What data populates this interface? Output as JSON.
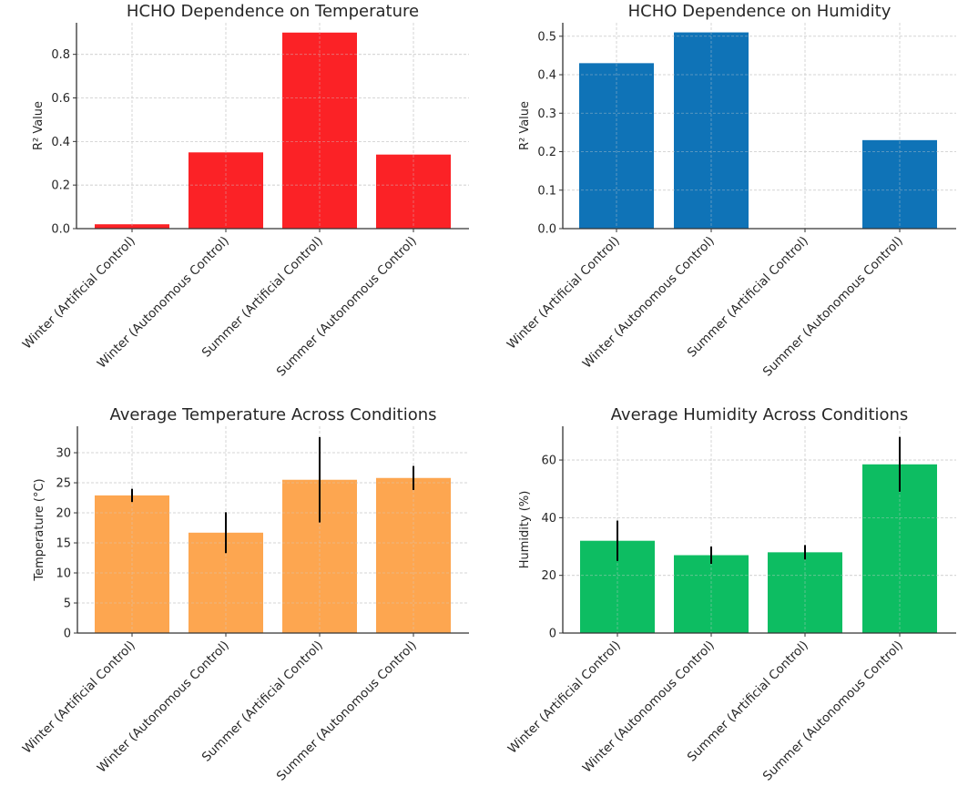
{
  "chart_data": [
    {
      "type": "bar",
      "title": "HCHO Dependence on Temperature",
      "xlabel": "",
      "ylabel": "R² Value",
      "categories": [
        "Winter (Artificial Control)",
        "Winter (Autonomous Control)",
        "Summer (Artificial Control)",
        "Summer (Autonomous Control)"
      ],
      "values": [
        0.02,
        0.35,
        0.9,
        0.34
      ],
      "ylim": [
        0,
        0.945
      ],
      "yticks": [
        0.0,
        0.2,
        0.4,
        0.6,
        0.8
      ],
      "ytick_labels": [
        "0.0",
        "0.2",
        "0.4",
        "0.6",
        "0.8"
      ],
      "color": "#fb2226",
      "grid": true
    },
    {
      "type": "bar",
      "title": "HCHO Dependence on Humidity",
      "xlabel": "",
      "ylabel": "R² Value",
      "categories": [
        "Winter (Artificial Control)",
        "Winter (Autonomous Control)",
        "Summer (Artificial Control)",
        "Summer (Autonomous Control)"
      ],
      "values": [
        0.43,
        0.51,
        0.0,
        0.23
      ],
      "ylim": [
        0,
        0.535
      ],
      "yticks": [
        0.0,
        0.1,
        0.2,
        0.3,
        0.4,
        0.5
      ],
      "ytick_labels": [
        "0.0",
        "0.1",
        "0.2",
        "0.3",
        "0.4",
        "0.5"
      ],
      "color": "#0f73b7",
      "grid": true
    },
    {
      "type": "bar",
      "title": "Average Temperature Across Conditions",
      "xlabel": "",
      "ylabel": "Temperature (°C)",
      "categories": [
        "Winter (Artificial Control)",
        "Winter (Autonomous Control)",
        "Summer (Artificial Control)",
        "Summer (Autonomous Control)"
      ],
      "values": [
        22.9,
        16.7,
        25.5,
        25.8
      ],
      "errors": [
        1.1,
        3.4,
        7.1,
        2.0
      ],
      "ylim": [
        0,
        34.4
      ],
      "yticks": [
        0,
        5,
        10,
        15,
        20,
        25,
        30
      ],
      "ytick_labels": [
        "0",
        "5",
        "10",
        "15",
        "20",
        "25",
        "30"
      ],
      "color": "#fda650",
      "grid": true
    },
    {
      "type": "bar",
      "title": "Average Humidity Across Conditions",
      "xlabel": "",
      "ylabel": "Humidity (%)",
      "categories": [
        "Winter (Artificial Control)",
        "Winter (Autonomous Control)",
        "Summer (Artificial Control)",
        "Summer (Autonomous Control)"
      ],
      "values": [
        32.0,
        27.0,
        28.0,
        58.5
      ],
      "errors": [
        7.0,
        3.0,
        2.5,
        9.5
      ],
      "ylim": [
        0,
        71.7
      ],
      "yticks": [
        0,
        20,
        40,
        60
      ],
      "ytick_labels": [
        "0",
        "20",
        "40",
        "60"
      ],
      "color": "#0dbd62",
      "grid": true
    }
  ]
}
